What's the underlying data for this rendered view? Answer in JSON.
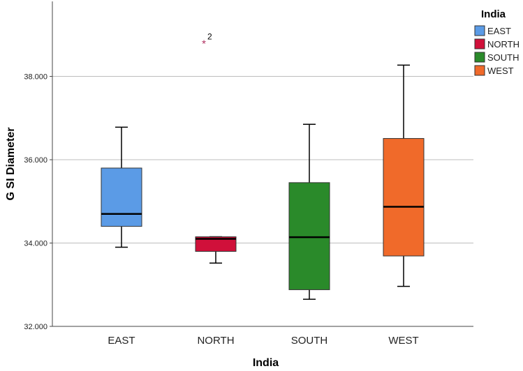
{
  "chart_data": {
    "type": "boxplot",
    "title": "",
    "xlabel": "India",
    "ylabel": "G SI Diameter",
    "ylim": [
      32.0,
      39.8
    ],
    "yticks": [
      32.0,
      34.0,
      36.0,
      38.0
    ],
    "ytick_labels": [
      "32.000",
      "34.000",
      "36.000",
      "38.000"
    ],
    "grid": true,
    "legend": {
      "title": "India",
      "position": "top-right",
      "entries": [
        "EAST",
        "NORTH",
        "SOUTH",
        "WEST"
      ]
    },
    "categories": [
      "EAST",
      "NORTH",
      "SOUTH",
      "WEST"
    ],
    "boxes": [
      {
        "category": "EAST",
        "color": "#5b9be6",
        "whisker_low": 33.9,
        "q1": 34.4,
        "median": 34.7,
        "q3": 35.8,
        "whisker_high": 36.78
      },
      {
        "category": "NORTH",
        "color": "#d0103a",
        "whisker_low": 33.52,
        "q1": 33.8,
        "median": 34.1,
        "q3": 34.15,
        "whisker_high": 34.15
      },
      {
        "category": "SOUTH",
        "color": "#2a8a2a",
        "whisker_low": 32.65,
        "q1": 32.88,
        "median": 34.14,
        "q3": 35.45,
        "whisker_high": 36.85
      },
      {
        "category": "WEST",
        "color": "#f06a2a",
        "whisker_low": 32.96,
        "q1": 33.69,
        "median": 34.87,
        "q3": 36.51,
        "whisker_high": 38.27
      }
    ],
    "outliers": [
      {
        "category": "NORTH",
        "value": 38.8,
        "label": "2",
        "color": "#b03060"
      }
    ]
  }
}
